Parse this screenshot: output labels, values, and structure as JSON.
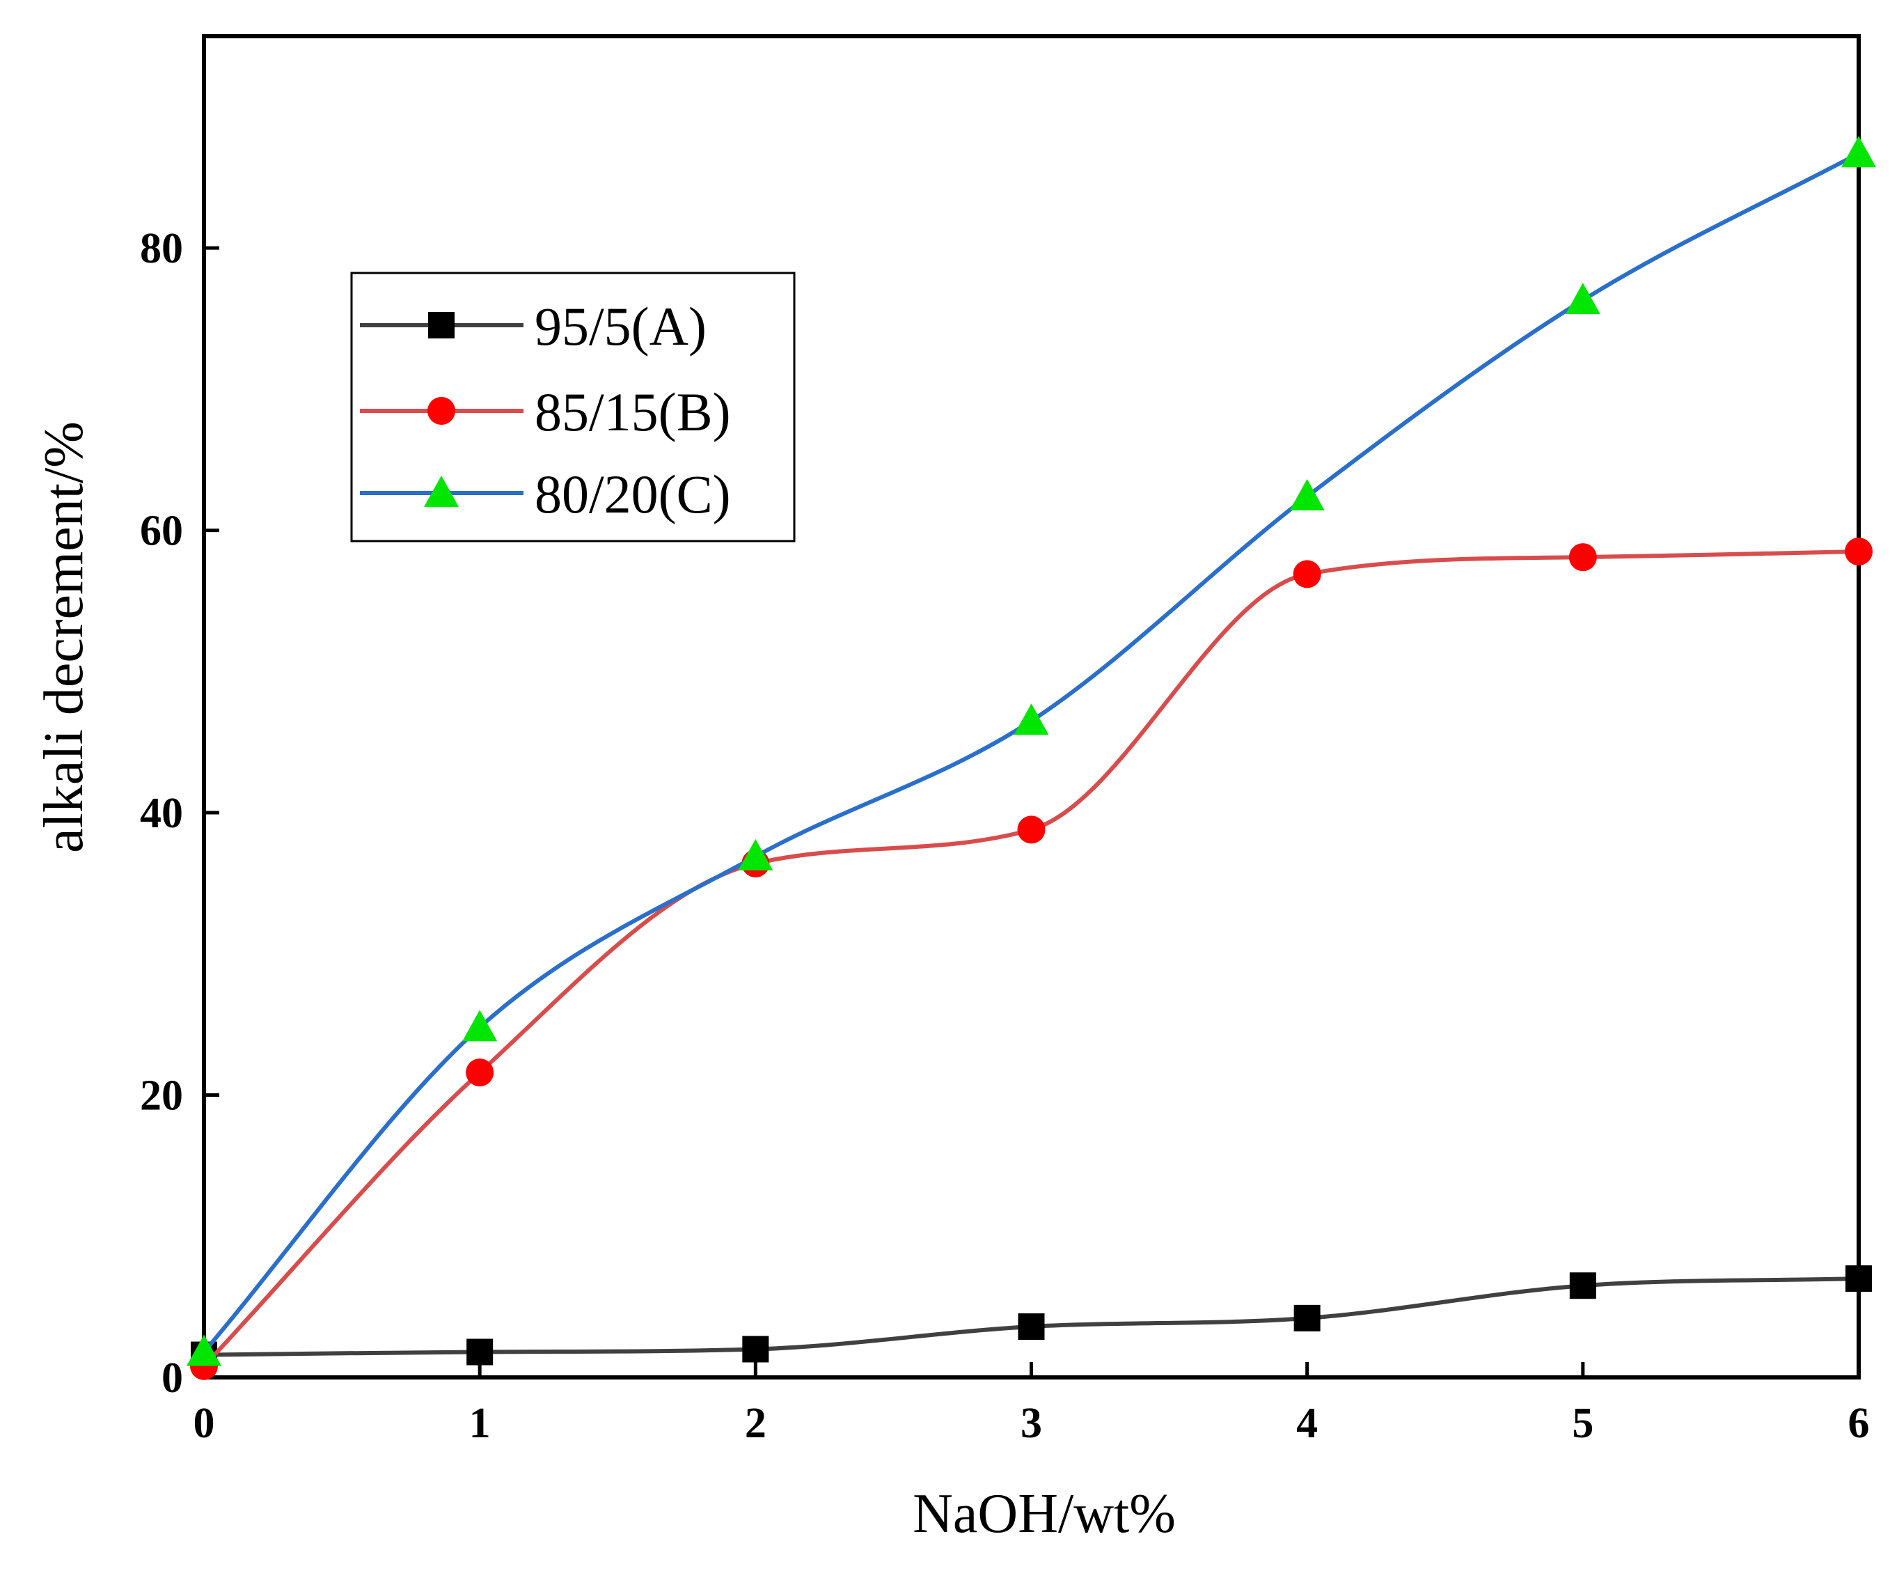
{
  "chart_data": {
    "type": "line",
    "title": "",
    "xlabel": "NaOH/wt%",
    "ylabel": "alkali decrement/%",
    "xlim": [
      0,
      6
    ],
    "ylim": [
      0,
      95
    ],
    "xticks": [
      0,
      1,
      2,
      3,
      4,
      5,
      6
    ],
    "xtick_labels": [
      "0",
      "1",
      "2",
      "3",
      "4",
      "5",
      "6"
    ],
    "yticks": [
      0,
      20,
      40,
      60,
      80
    ],
    "ytick_labels": [
      "0",
      "20",
      "40",
      "60",
      "80"
    ],
    "grid": false,
    "legend_position": "top-left",
    "x": [
      0,
      1,
      2,
      3,
      4,
      5,
      6
    ],
    "series": [
      {
        "name": "95/5(A)",
        "marker": "square",
        "line_color": "#404040",
        "marker_color": "#000000",
        "values": [
          1.6,
          1.8,
          2.0,
          3.6,
          4.2,
          6.5,
          7.0
        ]
      },
      {
        "name": "85/15(B)",
        "marker": "circle",
        "line_color": "#d94c4c",
        "marker_color": "#ff0000",
        "values": [
          0.8,
          21.6,
          36.4,
          38.8,
          56.9,
          58.1,
          58.5
        ]
      },
      {
        "name": "80/20(C)",
        "marker": "triangle",
        "line_color": "#2a6fc9",
        "marker_color": "#00e600",
        "values": [
          1.8,
          24.8,
          36.9,
          46.5,
          62.4,
          76.3,
          86.7
        ]
      }
    ]
  }
}
